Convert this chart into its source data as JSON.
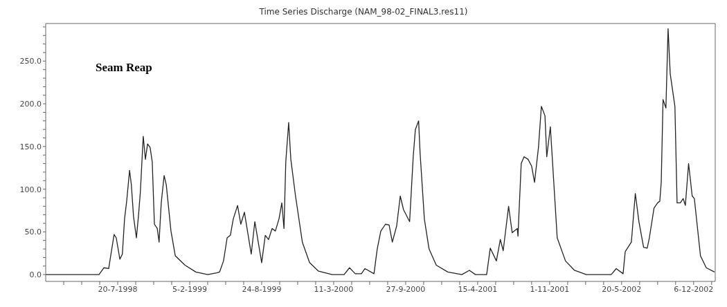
{
  "chart_data": {
    "type": "line",
    "title": "Time Series Discharge (NAM_98-02_FINAL3.res11)",
    "annotations": [
      "Seam Reap"
    ],
    "x": [
      "1998-01-01",
      "1998-05-29",
      "1998-06-12",
      "1998-06-25",
      "1998-07-10",
      "1998-07-16",
      "1998-07-26",
      "1998-08-02",
      "1998-08-08",
      "1998-08-14",
      "1998-08-22",
      "1998-08-27",
      "1998-09-02",
      "1998-09-10",
      "1998-09-16",
      "1998-09-21",
      "1998-09-29",
      "1998-10-05",
      "1998-10-11",
      "1998-10-18",
      "1998-10-24",
      "1998-10-30",
      "1998-11-07",
      "1998-11-12",
      "1998-11-18",
      "1998-11-26",
      "1998-12-02",
      "1998-12-15",
      "1998-12-27",
      "1999-01-23",
      "1999-02-22",
      "1999-03-27",
      "1999-04-21",
      "1999-04-29",
      "1999-05-10",
      "1999-05-20",
      "1999-05-29",
      "1999-06-06",
      "1999-06-18",
      "1999-06-27",
      "1999-07-07",
      "1999-07-26",
      "1999-08-05",
      "1999-08-24",
      "1999-09-03",
      "1999-09-12",
      "1999-09-22",
      "1999-10-01",
      "1999-10-11",
      "1999-10-19",
      "1999-10-25",
      "1999-10-30",
      "1999-11-07",
      "1999-11-13",
      "1999-11-26",
      "1999-12-15",
      "2000-01-04",
      "2000-01-29",
      "2000-03-07",
      "2000-04-09",
      "2000-04-24",
      "2000-05-10",
      "2000-05-27",
      "2000-06-06",
      "2000-07-01",
      "2000-07-10",
      "2000-07-20",
      "2000-08-02",
      "2000-08-12",
      "2000-08-21",
      "2000-09-02",
      "2000-09-12",
      "2000-09-21",
      "2000-10-08",
      "2000-10-18",
      "2000-10-24",
      "2000-11-02",
      "2000-11-06",
      "2000-11-18",
      "2000-12-01",
      "2000-12-21",
      "2001-01-22",
      "2001-03-02",
      "2001-03-23",
      "2001-04-09",
      "2001-05-04",
      "2001-05-10",
      "2001-05-20",
      "2001-06-06",
      "2001-06-17",
      "2001-06-25",
      "2001-07-10",
      "2001-07-20",
      "2001-08-03",
      "2001-08-05",
      "2001-08-14",
      "2001-08-22",
      "2001-09-02",
      "2001-09-12",
      "2001-09-20",
      "2001-10-01",
      "2001-10-09",
      "2001-10-19",
      "2001-10-24",
      "2001-11-03",
      "2001-11-09",
      "2001-11-22",
      "2001-12-15",
      "2002-01-09",
      "2002-02-11",
      "2002-04-21",
      "2002-05-05",
      "2002-05-24",
      "2002-05-30",
      "2002-06-16",
      "2002-06-27",
      "2002-07-07",
      "2002-07-20",
      "2002-07-30",
      "2002-08-05",
      "2002-08-18",
      "2002-08-28",
      "2002-09-03",
      "2002-09-07",
      "2002-09-12",
      "2002-09-20",
      "2002-09-26",
      "2002-10-02",
      "2002-10-15",
      "2002-10-21",
      "2002-10-30",
      "2002-11-07",
      "2002-11-13",
      "2002-11-22",
      "2002-12-02",
      "2002-12-08",
      "2002-12-25",
      "2003-01-10",
      "2003-02-02"
    ],
    "series": [
      {
        "color": "#222222",
        "values": [
          0,
          0,
          8,
          7,
          47,
          43,
          18,
          24,
          65,
          86,
          122,
          105,
          68,
          43,
          70,
          97,
          162,
          135,
          153,
          149,
          132,
          59,
          54,
          38,
          84,
          116,
          105,
          51,
          22,
          11,
          3,
          0,
          2,
          3,
          16,
          43,
          46,
          65,
          81,
          59,
          73,
          24,
          62,
          14,
          46,
          41,
          54,
          51,
          65,
          84,
          54,
          132,
          178,
          135,
          92,
          38,
          14,
          4,
          0,
          0,
          8,
          1,
          1,
          7,
          1,
          30,
          51,
          59,
          58,
          38,
          57,
          92,
          76,
          62,
          138,
          170,
          180,
          143,
          65,
          30,
          11,
          3,
          0,
          5,
          0,
          0,
          0,
          31,
          16,
          41,
          28,
          80,
          49,
          54,
          45,
          130,
          138,
          135,
          127,
          108,
          149,
          197,
          186,
          138,
          173,
          132,
          43,
          16,
          5,
          0,
          0,
          7,
          1,
          27,
          38,
          95,
          62,
          32,
          31,
          43,
          78,
          84,
          86,
          108,
          205,
          195,
          288,
          235,
          197,
          84,
          84,
          89,
          81,
          130,
          92,
          89,
          22,
          8,
          3
        ]
      }
    ],
    "xlim": [
      "1998-01-01",
      "2003-02-04"
    ],
    "xticks": [
      {
        "value": "1998-02-20",
        "label": null
      },
      {
        "value": "1998-04-11",
        "label": null
      },
      {
        "value": "1998-05-31",
        "label": null
      },
      {
        "value": "1998-07-20",
        "label": "20-7-1998"
      },
      {
        "value": "1998-09-08",
        "label": null
      },
      {
        "value": "1998-10-28",
        "label": null
      },
      {
        "value": "1998-12-17",
        "label": null
      },
      {
        "value": "1999-02-05",
        "label": "5-2-1999"
      },
      {
        "value": "1999-03-27",
        "label": null
      },
      {
        "value": "1999-05-16",
        "label": null
      },
      {
        "value": "1999-07-05",
        "label": null
      },
      {
        "value": "1999-08-24",
        "label": "24-8-1999"
      },
      {
        "value": "1999-10-13",
        "label": null
      },
      {
        "value": "1999-12-02",
        "label": null
      },
      {
        "value": "2000-01-21",
        "label": null
      },
      {
        "value": "2000-03-11",
        "label": "11-3-2000"
      },
      {
        "value": "2000-04-30",
        "label": null
      },
      {
        "value": "2000-06-19",
        "label": null
      },
      {
        "value": "2000-08-08",
        "label": null
      },
      {
        "value": "2000-09-27",
        "label": "27-9-2000"
      },
      {
        "value": "2000-11-16",
        "label": null
      },
      {
        "value": "2001-01-05",
        "label": null
      },
      {
        "value": "2001-02-24",
        "label": null
      },
      {
        "value": "2001-04-15",
        "label": "15-4-2001"
      },
      {
        "value": "2001-06-04",
        "label": null
      },
      {
        "value": "2001-07-24",
        "label": null
      },
      {
        "value": "2001-09-12",
        "label": null
      },
      {
        "value": "2001-11-01",
        "label": "1-11-2001"
      },
      {
        "value": "2001-12-21",
        "label": null
      },
      {
        "value": "2002-02-09",
        "label": null
      },
      {
        "value": "2002-03-31",
        "label": null
      },
      {
        "value": "2002-05-20",
        "label": "20-5-2002"
      },
      {
        "value": "2002-07-09",
        "label": null
      },
      {
        "value": "2002-08-28",
        "label": null
      },
      {
        "value": "2002-10-17",
        "label": null
      },
      {
        "value": "2002-12-06",
        "label": "6-12-2002"
      },
      {
        "value": "2003-01-25",
        "label": null
      }
    ],
    "ylim": [
      -8,
      294
    ],
    "yticks": [
      {
        "value": 0,
        "label": "0.0"
      },
      {
        "value": 10,
        "label": null
      },
      {
        "value": 20,
        "label": null
      },
      {
        "value": 30,
        "label": null
      },
      {
        "value": 40,
        "label": null
      },
      {
        "value": 50,
        "label": "50.0"
      },
      {
        "value": 60,
        "label": null
      },
      {
        "value": 70,
        "label": null
      },
      {
        "value": 80,
        "label": null
      },
      {
        "value": 90,
        "label": null
      },
      {
        "value": 100,
        "label": "100.0"
      },
      {
        "value": 110,
        "label": null
      },
      {
        "value": 120,
        "label": null
      },
      {
        "value": 130,
        "label": null
      },
      {
        "value": 140,
        "label": null
      },
      {
        "value": 150,
        "label": "150.0"
      },
      {
        "value": 160,
        "label": null
      },
      {
        "value": 170,
        "label": null
      },
      {
        "value": 180,
        "label": null
      },
      {
        "value": 190,
        "label": null
      },
      {
        "value": 200,
        "label": "200.0"
      },
      {
        "value": 210,
        "label": null
      },
      {
        "value": 220,
        "label": null
      },
      {
        "value": 230,
        "label": null
      },
      {
        "value": 240,
        "label": null
      },
      {
        "value": 250,
        "label": "250.0"
      },
      {
        "value": 260,
        "label": null
      },
      {
        "value": 270,
        "label": null
      },
      {
        "value": 280,
        "label": null
      },
      {
        "value": 290,
        "label": null
      }
    ]
  }
}
